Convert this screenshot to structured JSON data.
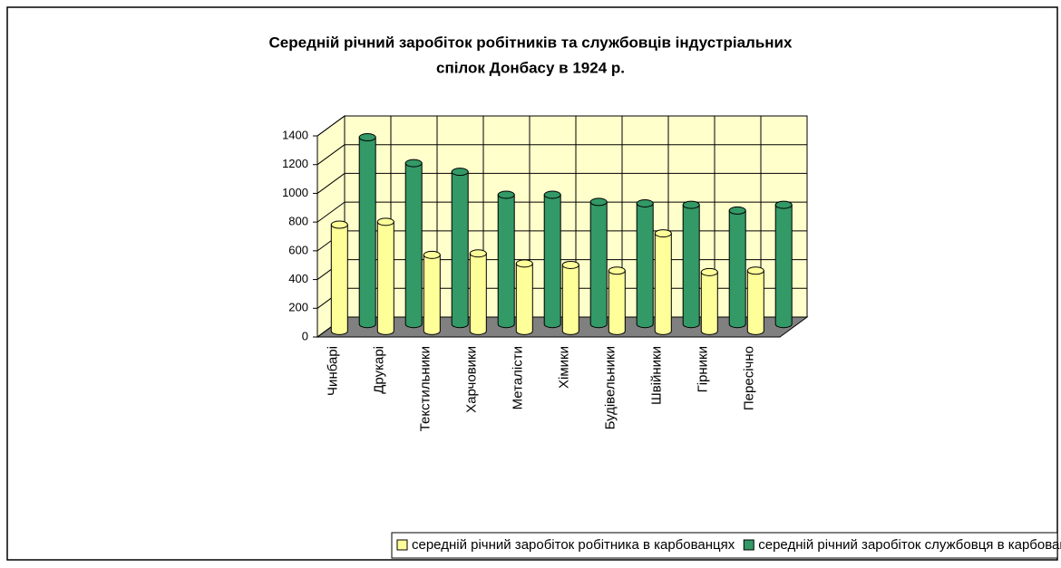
{
  "chart_data": {
    "type": "bar3d",
    "title": [
      "Середній річний заробіток робітників та службовців індустріальних",
      "спілок Донбасу в 1924 р."
    ],
    "categories": [
      "Чинбарі",
      "Друкарі",
      "Текстильники",
      "Харчовики",
      "Металісти",
      "Хімики",
      "Будівельники",
      "Швійники",
      "Гірники",
      "Пересічно"
    ],
    "series": [
      {
        "name": "середній річний заробіток робітника в карбованцях",
        "color": "#ffff99",
        "values": [
          740,
          760,
          530,
          540,
          470,
          460,
          420,
          680,
          410,
          420
        ]
      },
      {
        "name": "середній річний заробіток службовця в карбованцях",
        "color": "#339966",
        "values": [
          1300,
          1120,
          1060,
          900,
          900,
          850,
          840,
          830,
          790,
          830
        ]
      }
    ],
    "ylim": [
      0,
      1400
    ],
    "yticks": [
      0,
      200,
      400,
      600,
      800,
      1000,
      1200,
      1400
    ],
    "grid": true,
    "legend": "bottom"
  }
}
